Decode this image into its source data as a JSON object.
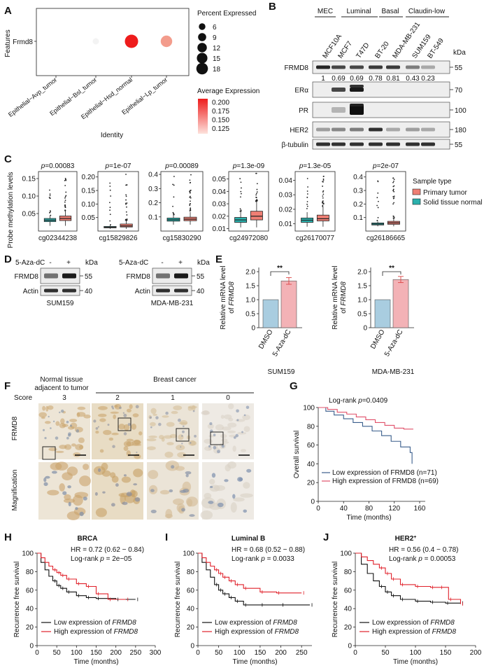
{
  "panels": [
    "A",
    "B",
    "C",
    "D",
    "E",
    "F",
    "G",
    "H",
    "I",
    "J"
  ],
  "panel_a": {
    "ylabel": "Features",
    "gene": "Frmd8",
    "xlabel": "Identity",
    "categories": [
      "Epithelial−Avp_tumor",
      "Epithelial−Bsl_tumor",
      "Epithelial−Hsd_normal",
      "Epithelial−Lp_tumor"
    ],
    "dots": [
      {
        "pct": 0,
        "avg": 0.12,
        "color": "#ffffff"
      },
      {
        "pct": 3,
        "avg": 0.12,
        "color": "#f3f3f3"
      },
      {
        "pct": 18,
        "avg": 0.205,
        "color": "#ee1c1c"
      },
      {
        "pct": 13,
        "avg": 0.16,
        "color": "#f39c8c"
      }
    ],
    "legend_size_title": "Percent Expressed",
    "legend_size_values": [
      "6",
      "9",
      "12",
      "15",
      "18"
    ],
    "legend_color_title": "Average Expression",
    "legend_color_values": [
      "0.200",
      "0.175",
      "0.150",
      "0.125"
    ]
  },
  "panel_b": {
    "groups": [
      "MEC",
      "Luminal",
      "Basal",
      "Claudin-low"
    ],
    "cell_lines": [
      "MCF10A",
      "MCF7",
      "T47D",
      "BT-20",
      "MDA-MB-231",
      "SUM159",
      "BT-549"
    ],
    "kda_label": "kDa",
    "blots": [
      {
        "name": "FRMD8",
        "kda": "55"
      },
      {
        "name": "ERα",
        "kda": "70"
      },
      {
        "name": "PR",
        "kda": "100"
      },
      {
        "name": "HER2",
        "kda": "180"
      },
      {
        "name": "β-tubulin",
        "kda": "55"
      }
    ],
    "quant": [
      "1",
      "0.69",
      "0.69",
      "0.78",
      "0.81",
      "0.43",
      "0.23"
    ]
  },
  "panel_c": {
    "ylabel": "Probe methylation levels",
    "legend_title": "Sample type",
    "legend_items": [
      {
        "label": "Primary tumor",
        "color": "#ef7f74"
      },
      {
        "label": "Solid tissue normal",
        "color": "#2bb1ad"
      }
    ],
    "plots": [
      {
        "probe": "cg02344238",
        "p_label": "p",
        "p_value": "=0.00083",
        "ticks": [
          "0.15",
          "0.10",
          "0.05"
        ],
        "ylim": [
          0.0,
          0.17
        ],
        "normal": {
          "q1": 0.027,
          "med": 0.031,
          "q3": 0.036,
          "lo": 0.015,
          "hi": 0.045
        },
        "tumor": {
          "q1": 0.03,
          "med": 0.036,
          "q3": 0.043,
          "lo": 0.015,
          "hi": 0.058
        }
      },
      {
        "probe": "cg15829826",
        "p_label": "p",
        "p_value": "=1e-07",
        "ticks": [
          "0.20",
          "0.15",
          "0.10",
          "0.05"
        ],
        "ylim": [
          0.0,
          0.22
        ],
        "normal": {
          "q1": 0.012,
          "med": 0.014,
          "q3": 0.017,
          "lo": 0.008,
          "hi": 0.022
        },
        "tumor": {
          "q1": 0.015,
          "med": 0.019,
          "q3": 0.026,
          "lo": 0.008,
          "hi": 0.04
        }
      },
      {
        "probe": "cg15830290",
        "p_label": "p",
        "p_value": "=0.00089",
        "ticks": [
          "0.4",
          "0.3",
          "0.2",
          "0.1"
        ],
        "ylim": [
          0.0,
          0.42
        ],
        "normal": {
          "q1": 0.07,
          "med": 0.08,
          "q3": 0.092,
          "lo": 0.045,
          "hi": 0.115
        },
        "tumor": {
          "q1": 0.073,
          "med": 0.084,
          "q3": 0.098,
          "lo": 0.045,
          "hi": 0.135
        }
      },
      {
        "probe": "cg24972080",
        "p_label": "p",
        "p_value": "=1.3e-09",
        "ticks": [
          "0.05",
          "0.04",
          "0.03",
          "0.02",
          "0.01"
        ],
        "ylim": [
          0.008,
          0.056
        ],
        "normal": {
          "q1": 0.015,
          "med": 0.017,
          "q3": 0.019,
          "lo": 0.011,
          "hi": 0.024
        },
        "tumor": {
          "q1": 0.017,
          "med": 0.02,
          "q3": 0.024,
          "lo": 0.011,
          "hi": 0.032
        }
      },
      {
        "probe": "cg26170077",
        "p_label": "p",
        "p_value": "=1.3e-05",
        "ticks": [
          "0.04",
          "0.03",
          "0.02",
          "0.01"
        ],
        "ylim": [
          0.005,
          0.046
        ],
        "normal": {
          "q1": 0.011,
          "med": 0.0125,
          "q3": 0.014,
          "lo": 0.008,
          "hi": 0.018
        },
        "tumor": {
          "q1": 0.012,
          "med": 0.0135,
          "q3": 0.016,
          "lo": 0.008,
          "hi": 0.022
        }
      },
      {
        "probe": "cg26186665",
        "p_label": "p",
        "p_value": "=2e-07",
        "ticks": [
          "0.4",
          "0.3",
          "0.2",
          "0.1"
        ],
        "ylim": [
          0.0,
          0.44
        ],
        "normal": {
          "q1": 0.045,
          "med": 0.052,
          "q3": 0.06,
          "lo": 0.035,
          "hi": 0.07
        },
        "tumor": {
          "q1": 0.05,
          "med": 0.06,
          "q3": 0.072,
          "lo": 0.035,
          "hi": 0.095
        }
      }
    ]
  },
  "panel_d": {
    "treatment": "5-Aza-dC",
    "minus": "-",
    "plus": "+",
    "kda": "kDa",
    "blots": [
      {
        "name": "FRMD8",
        "kda": "55"
      },
      {
        "name": "Actin",
        "kda": "40"
      }
    ],
    "cells": [
      "SUM159",
      "MDA-MB-231"
    ]
  },
  "panel_e": {
    "ylabel_line1": "Relative mRNA level",
    "ylabel_line2_prefix": "of ",
    "ylabel_gene": "FRMD8",
    "ticks": [
      "2.0",
      "1.5",
      "1.0",
      "0.5",
      "0"
    ],
    "sig": "**",
    "plots": [
      {
        "cell": "SUM159",
        "bars": [
          {
            "label": "DMSO",
            "value": 1.0,
            "err": 0,
            "color": "#a9cde0"
          },
          {
            "label": "5-Aza-dC",
            "value": 1.67,
            "err": 0.12,
            "color": "#f3b2b6"
          }
        ]
      },
      {
        "cell": "MDA-MB-231",
        "bars": [
          {
            "label": "DMSO",
            "value": 1.0,
            "err": 0,
            "color": "#a9cde0"
          },
          {
            "label": "5-Aza-dC",
            "value": 1.72,
            "err": 0.11,
            "color": "#f3b2b6"
          }
        ]
      }
    ]
  },
  "panel_f": {
    "normal_label_line1": "Normal tissue",
    "normal_label_line2": "adjacent to tumor",
    "cancer_label": "Breast cancer",
    "score_label": "Score",
    "scores": [
      "3",
      "2",
      "1",
      "0"
    ],
    "row_labels": [
      "FRMD8",
      "Magnification"
    ]
  },
  "panel_g": {
    "title_prefix": "Log-rank ",
    "title_p": "p",
    "title_value": "=0.0409",
    "ylabel": "Overall survival",
    "xlabel": "Time (months)",
    "xticks": [
      "0",
      "40",
      "80",
      "120",
      "160"
    ],
    "yticks": [
      "100",
      "80",
      "60",
      "40",
      "20",
      "0"
    ],
    "legend": [
      {
        "label": "Low expression of FRMD8 (n=71)",
        "color": "#3a5e8c"
      },
      {
        "label": "High expression of FRMD8 (n=69)",
        "color": "#e0506a"
      }
    ]
  },
  "km_panels": [
    {
      "title": "BRCA",
      "hr": "HR = 0.72 (0.62 − 0.84)",
      "lr_prefix": "Log-rank ",
      "lr_p": "p",
      "lr_value": " = 2e−05",
      "xticks": [
        "0",
        "50",
        "100",
        "150",
        "200",
        "250",
        "300"
      ],
      "xmax": 300,
      "low": [
        [
          0,
          100
        ],
        [
          10,
          90
        ],
        [
          20,
          82
        ],
        [
          30,
          75
        ],
        [
          40,
          70
        ],
        [
          50,
          65
        ],
        [
          60,
          62
        ],
        [
          75,
          58
        ],
        [
          100,
          54
        ],
        [
          125,
          52
        ],
        [
          150,
          51
        ],
        [
          200,
          50
        ],
        [
          250,
          50
        ]
      ],
      "high": [
        [
          0,
          100
        ],
        [
          10,
          95
        ],
        [
          20,
          90
        ],
        [
          30,
          86
        ],
        [
          40,
          82
        ],
        [
          50,
          79
        ],
        [
          60,
          76
        ],
        [
          75,
          72
        ],
        [
          100,
          67
        ],
        [
          125,
          64
        ],
        [
          150,
          56
        ],
        [
          180,
          50
        ],
        [
          225,
          50
        ]
      ]
    },
    {
      "title": "Luminal B",
      "hr": "HR = 0.68 (0.52 − 0.88)",
      "lr_prefix": "Log-rank ",
      "lr_p": "p",
      "lr_value": " = 0.0033",
      "xticks": [
        "0",
        "50",
        "100",
        "150",
        "200",
        "250"
      ],
      "xmax": 275,
      "low": [
        [
          0,
          100
        ],
        [
          10,
          90
        ],
        [
          20,
          82
        ],
        [
          30,
          74
        ],
        [
          40,
          66
        ],
        [
          50,
          60
        ],
        [
          60,
          56
        ],
        [
          75,
          52
        ],
        [
          90,
          48
        ],
        [
          110,
          44
        ],
        [
          150,
          44
        ],
        [
          200,
          44
        ],
        [
          270,
          44
        ]
      ],
      "high": [
        [
          0,
          100
        ],
        [
          10,
          95
        ],
        [
          20,
          90
        ],
        [
          30,
          86
        ],
        [
          40,
          82
        ],
        [
          50,
          78
        ],
        [
          60,
          74
        ],
        [
          75,
          70
        ],
        [
          90,
          66
        ],
        [
          110,
          62
        ],
        [
          150,
          58
        ],
        [
          190,
          57
        ],
        [
          250,
          57
        ]
      ]
    },
    {
      "title": "HER2",
      "title_sup": "+",
      "hr": "HR = 0.56 (0.4 − 0.78)",
      "lr_prefix": "Log-rank ",
      "lr_p": "p",
      "lr_value": " = 0.00053",
      "xticks": [
        "0",
        "50",
        "100",
        "150",
        "200"
      ],
      "xmax": 200,
      "low": [
        [
          0,
          100
        ],
        [
          10,
          88
        ],
        [
          20,
          78
        ],
        [
          30,
          70
        ],
        [
          40,
          64
        ],
        [
          50,
          58
        ],
        [
          60,
          54
        ],
        [
          75,
          50
        ],
        [
          100,
          48
        ],
        [
          125,
          47
        ],
        [
          150,
          46
        ],
        [
          175,
          46
        ]
      ],
      "high": [
        [
          0,
          100
        ],
        [
          10,
          96
        ],
        [
          20,
          92
        ],
        [
          30,
          88
        ],
        [
          40,
          84
        ],
        [
          50,
          78
        ],
        [
          60,
          72
        ],
        [
          75,
          66
        ],
        [
          100,
          64
        ],
        [
          125,
          63
        ],
        [
          140,
          63
        ],
        [
          155,
          50
        ],
        [
          175,
          45
        ]
      ]
    }
  ],
  "km_common": {
    "ylabel": "Recurrence free survival",
    "xlabel": "Time (months)",
    "yticks": [
      "100",
      "80",
      "60",
      "40",
      "20",
      "0"
    ],
    "legend_prefix": "Low expression of ",
    "legend_prefix_high": "High expression of ",
    "legend_gene": "FRMD8",
    "colors": {
      "low": "#111111",
      "high": "#e0202a"
    }
  }
}
